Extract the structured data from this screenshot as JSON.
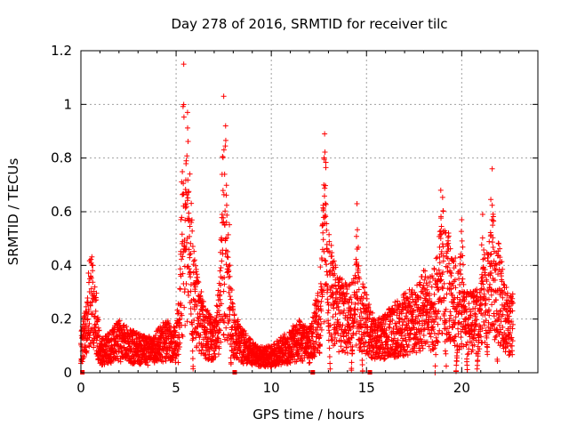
{
  "chart_data": {
    "type": "scatter",
    "title": "Day 278 of 2016, SRMTID for receiver tilc",
    "xlabel": "GPS time / hours",
    "ylabel": "SRMTID / TECUs",
    "xlim": [
      0,
      24
    ],
    "ylim": [
      0,
      1.2
    ],
    "xticks": [
      0,
      5,
      10,
      15,
      20
    ],
    "xtick_labels": [
      "0",
      "5",
      "10",
      "15",
      "20"
    ],
    "yticks": [
      0,
      0.2,
      0.4,
      0.6,
      0.8,
      1.0,
      1.2
    ],
    "ytick_labels": [
      "0",
      "0.2",
      "0.4",
      "0.6",
      "0.8",
      "1",
      "1.2"
    ],
    "grid": true,
    "marker": "+",
    "color": "#ff0000",
    "series": [
      {
        "name": "SRMTID",
        "envelope_x": [
          0.0,
          0.3,
          0.5,
          0.8,
          1.0,
          1.5,
          2.0,
          2.5,
          3.0,
          3.5,
          4.0,
          4.5,
          5.0,
          5.3,
          5.6,
          6.0,
          6.5,
          7.0,
          7.5,
          7.8,
          8.0,
          8.5,
          9.0,
          9.5,
          10.0,
          10.5,
          11.0,
          11.5,
          12.0,
          12.5,
          12.8,
          13.0,
          13.5,
          14.0,
          14.5,
          15.0,
          15.5,
          16.0,
          16.5,
          17.0,
          17.5,
          18.0,
          18.5,
          19.0,
          19.5,
          20.0,
          20.5,
          21.0,
          21.5,
          22.0,
          22.5
        ],
        "envelope_y": [
          0.1,
          0.16,
          0.3,
          0.2,
          0.08,
          0.09,
          0.12,
          0.1,
          0.09,
          0.08,
          0.1,
          0.12,
          0.1,
          0.3,
          0.55,
          0.25,
          0.15,
          0.12,
          0.3,
          0.35,
          0.14,
          0.1,
          0.07,
          0.06,
          0.06,
          0.08,
          0.1,
          0.12,
          0.1,
          0.2,
          0.55,
          0.32,
          0.22,
          0.2,
          0.25,
          0.18,
          0.12,
          0.14,
          0.16,
          0.18,
          0.2,
          0.24,
          0.22,
          0.4,
          0.28,
          0.22,
          0.18,
          0.2,
          0.4,
          0.28,
          0.18
        ],
        "peaks": [
          {
            "x": 5.4,
            "y": 1.15
          },
          {
            "x": 5.6,
            "y": 0.97
          },
          {
            "x": 7.5,
            "y": 1.03
          },
          {
            "x": 7.6,
            "y": 0.92
          },
          {
            "x": 12.8,
            "y": 0.89
          },
          {
            "x": 14.5,
            "y": 0.63
          },
          {
            "x": 18.9,
            "y": 0.68
          },
          {
            "x": 20.0,
            "y": 0.57
          },
          {
            "x": 21.6,
            "y": 0.76
          },
          {
            "x": 21.1,
            "y": 0.59
          }
        ],
        "gap_markers_x": [
          0.1,
          8.1,
          12.2,
          15.2
        ],
        "x_range": [
          0.0,
          22.7
        ]
      }
    ]
  }
}
